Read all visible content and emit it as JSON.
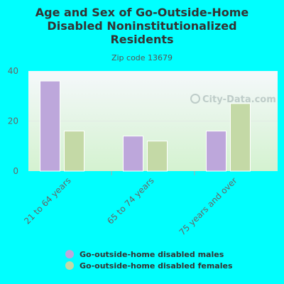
{
  "header": {
    "title_lines": [
      "Age and Sex of Go-Outside-Home",
      "Disabled Noninstitutionalized",
      "Residents"
    ],
    "subtitle": "Zip code 13679"
  },
  "watermark": {
    "text": "City-Data.com",
    "icon": "magnifier-icon"
  },
  "colors": {
    "background": "#00ffff",
    "males": "#bda7db",
    "females": "#c4d9a6",
    "plot_top": "#f5f8fb",
    "plot_bottom": "#d4f2d0"
  },
  "chart_data": {
    "type": "bar",
    "title": "Age and Sex of Go-Outside-Home Disabled Noninstitutionalized Residents",
    "subtitle": "Zip code 13679",
    "categories": [
      "21 to 64 years",
      "65 to 74 years",
      "75 years and over"
    ],
    "series": [
      {
        "name": "Go-outside-home disabled males",
        "values": [
          36,
          14,
          16
        ]
      },
      {
        "name": "Go-outside-home disabled females",
        "values": [
          16,
          12,
          27
        ]
      }
    ],
    "ylim": [
      0,
      40
    ],
    "yticks": [
      0,
      20,
      40
    ],
    "grid": true,
    "legend": "bottom"
  }
}
